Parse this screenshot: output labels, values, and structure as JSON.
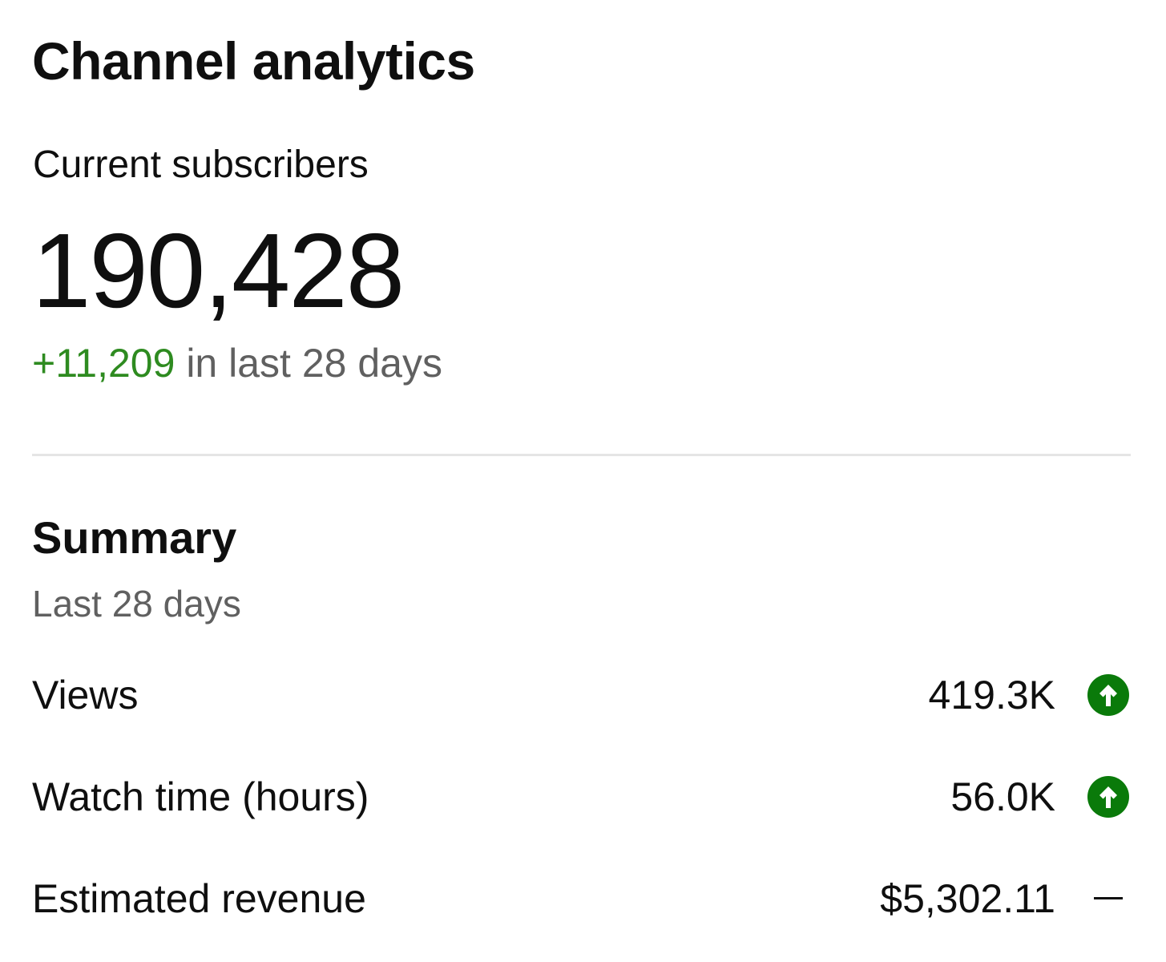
{
  "card": {
    "title": "Channel analytics"
  },
  "subscribers": {
    "label": "Current subscribers",
    "count": "190,428",
    "delta": "+11,209",
    "delta_suffix": " in last 28 days"
  },
  "summary": {
    "title": "Summary",
    "period": "Last 28 days",
    "metrics": [
      {
        "label": "Views",
        "value": "419.3K",
        "trend_icon": "arrow-up-circle-icon",
        "trend": "up"
      },
      {
        "label": "Watch time (hours)",
        "value": "56.0K",
        "trend_icon": "arrow-up-circle-icon",
        "trend": "up"
      },
      {
        "label": "Estimated revenue",
        "value": "$5,302.11",
        "trend_icon": "dash-icon",
        "trend": "neutral"
      }
    ]
  },
  "colors": {
    "gain_green": "#2e8b20",
    "trend_up_green": "#0a7a0a",
    "muted_text": "#606060",
    "divider": "#e5e5e5"
  }
}
